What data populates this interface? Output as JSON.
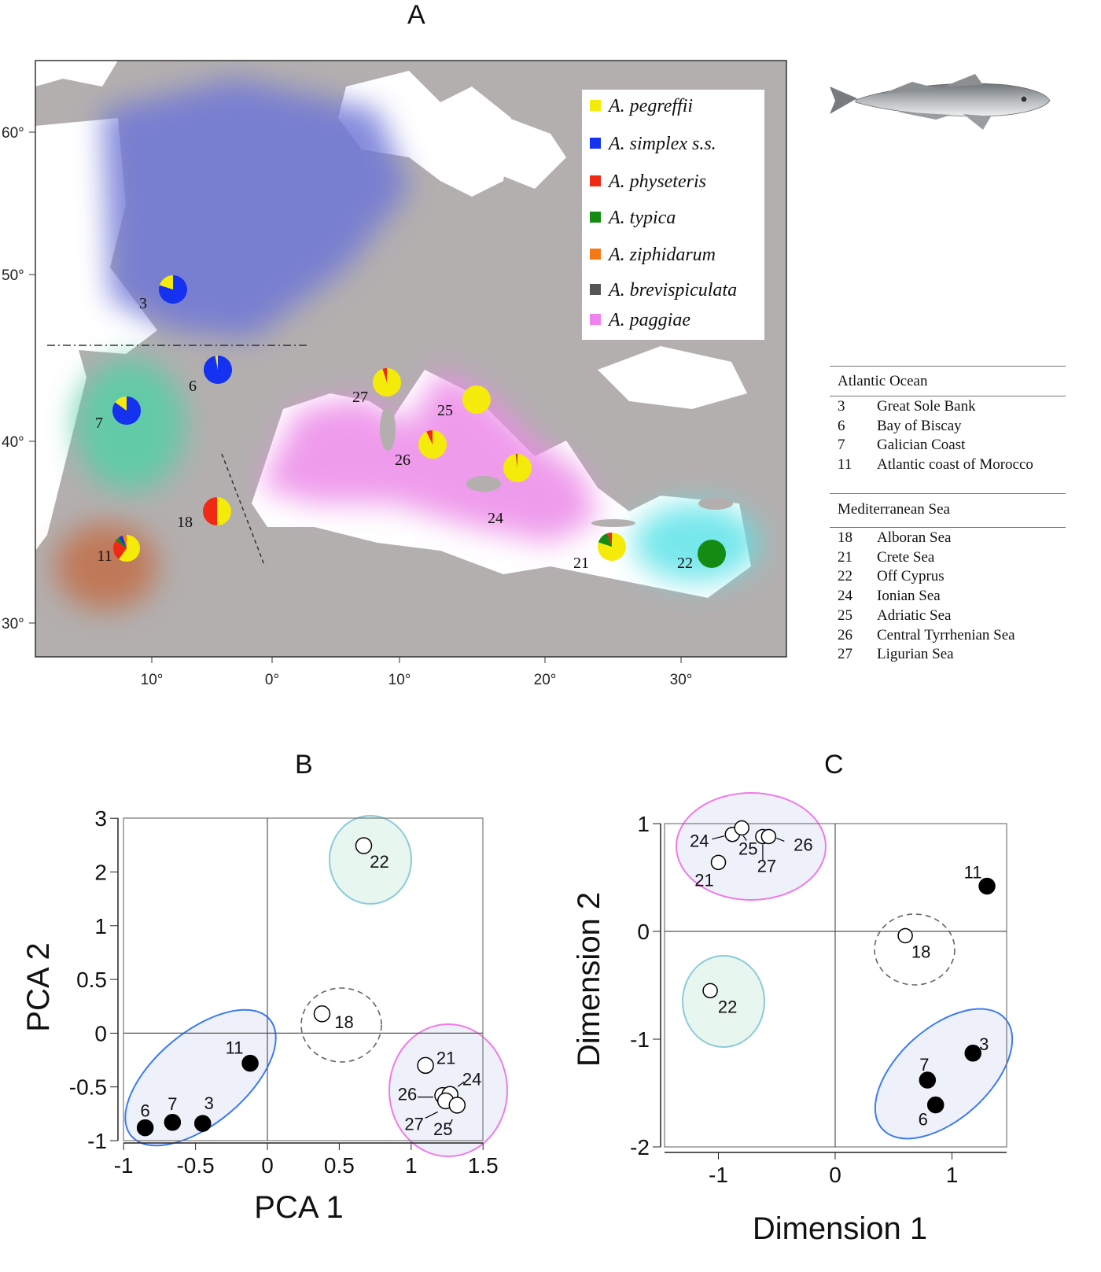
{
  "panels": {
    "a": "A",
    "b": "B",
    "c": "C"
  },
  "map": {
    "lat_labels": [
      "60°",
      "50°",
      "40°",
      "30°"
    ],
    "lon_labels": [
      "10°",
      "0°",
      "10°",
      "20°",
      "30°"
    ],
    "legend": [
      {
        "name": "A. pegreffii",
        "color": "#f5eb0a"
      },
      {
        "name": "A. simplex s.s.",
        "color": "#1432f0"
      },
      {
        "name": "A. physeteris",
        "color": "#f02814"
      },
      {
        "name": "A. typica",
        "color": "#148c14"
      },
      {
        "name": "A. ziphidarum",
        "color": "#f57814"
      },
      {
        "name": "A. brevispiculata",
        "color": "#555555"
      },
      {
        "name": "A. paggiae",
        "color": "#f082f0"
      }
    ],
    "sites": [
      {
        "id": "3",
        "composition": {
          "A. simplex s.s.": 0.8,
          "A. pegreffii": 0.2
        }
      },
      {
        "id": "6",
        "composition": {
          "A. simplex s.s.": 0.97,
          "A. pegreffii": 0.03
        }
      },
      {
        "id": "7",
        "composition": {
          "A. simplex s.s.": 0.85,
          "A. pegreffii": 0.15
        }
      },
      {
        "id": "11",
        "composition": {
          "A. pegreffii": 0.6,
          "A. physeteris": 0.25,
          "A. typica": 0.05,
          "A. simplex s.s.": 0.05,
          "A. ziphidarum": 0.05
        }
      },
      {
        "id": "18",
        "composition": {
          "A. pegreffii": 0.5,
          "A. physeteris": 0.5
        }
      },
      {
        "id": "27",
        "composition": {
          "A. pegreffii": 0.95,
          "A. physeteris": 0.05
        }
      },
      {
        "id": "25",
        "composition": {
          "A. pegreffii": 1.0
        }
      },
      {
        "id": "26",
        "composition": {
          "A. pegreffii": 0.93,
          "A. physeteris": 0.07
        }
      },
      {
        "id": "24",
        "composition": {
          "A. pegreffii": 0.98,
          "A. physeteris": 0.01,
          "A. brevispiculata": 0.01
        }
      },
      {
        "id": "21",
        "composition": {
          "A. pegreffii": 0.8,
          "A. typica": 0.15,
          "A. physeteris": 0.05
        }
      },
      {
        "id": "22",
        "composition": {
          "A. typica": 1.0
        }
      }
    ]
  },
  "site_table": {
    "groups": [
      {
        "title": "Atlantic Ocean",
        "rows": [
          [
            "3",
            "Great Sole Bank"
          ],
          [
            "6",
            "Bay of Biscay"
          ],
          [
            "7",
            "Galician Coast"
          ],
          [
            "11",
            "Atlantic coast of Morocco"
          ]
        ]
      },
      {
        "title": "Mediterranean Sea",
        "rows": [
          [
            "18",
            "Alboran Sea"
          ],
          [
            "21",
            "Crete Sea"
          ],
          [
            "22",
            "Off Cyprus"
          ],
          [
            "24",
            "Ionian Sea"
          ],
          [
            "25",
            "Adriatic Sea"
          ],
          [
            "26",
            "Central Tyrrhenian Sea"
          ],
          [
            "27",
            "Ligurian Sea"
          ]
        ]
      }
    ]
  },
  "chart_data": [
    {
      "type": "scatter",
      "title": "B",
      "xlabel": "PCA 1",
      "ylabel": "PCA 2",
      "xlim": [
        -1,
        1.5
      ],
      "ylim": [
        -1,
        3
      ],
      "xticks": [
        "-1",
        "-0.5",
        "0",
        "0.5",
        "1",
        "1.5"
      ],
      "yticks": [
        "-1",
        "-0.5",
        "0",
        "0.5",
        "1",
        "2",
        "3"
      ],
      "points": [
        {
          "label": "6",
          "x": -0.85,
          "y": -0.88,
          "filled": true
        },
        {
          "label": "7",
          "x": -0.66,
          "y": -0.83,
          "filled": true
        },
        {
          "label": "3",
          "x": -0.45,
          "y": -0.84,
          "filled": true
        },
        {
          "label": "11",
          "x": -0.12,
          "y": -0.28,
          "filled": true
        },
        {
          "label": "18",
          "x": 0.38,
          "y": 0.18,
          "filled": false
        },
        {
          "label": "22",
          "x": 0.67,
          "y": 2.49,
          "filled": false
        },
        {
          "label": "21",
          "x": 1.1,
          "y": -0.3,
          "filled": false
        },
        {
          "label": "26",
          "x": 1.22,
          "y": -0.58,
          "filled": false
        },
        {
          "label": "24",
          "x": 1.27,
          "y": -0.57,
          "filled": false
        },
        {
          "label": "27",
          "x": 1.24,
          "y": -0.63,
          "filled": false
        },
        {
          "label": "25",
          "x": 1.32,
          "y": -0.67,
          "filled": false
        }
      ],
      "groups": [
        {
          "name": "atlantic",
          "members": [
            "3",
            "6",
            "7",
            "11"
          ],
          "color": "#3b7bf0"
        },
        {
          "name": "cyprus",
          "members": [
            "22"
          ],
          "color": "#8ccbd8"
        },
        {
          "name": "alboran",
          "members": [
            "18"
          ],
          "color": "#666666"
        },
        {
          "name": "mediterranean",
          "members": [
            "21",
            "24",
            "25",
            "26",
            "27"
          ],
          "color": "#ee7ae8"
        }
      ]
    },
    {
      "type": "scatter",
      "title": "C",
      "xlabel": "Dimension 1",
      "ylabel": "Dimension 2",
      "xlim": [
        -1.4,
        1.5
      ],
      "ylim": [
        -2,
        1
      ],
      "xticks": [
        "-1",
        "0",
        "1"
      ],
      "yticks": [
        "-2",
        "-1",
        "0",
        "1"
      ],
      "points": [
        {
          "label": "24",
          "x": -0.88,
          "y": 0.9,
          "filled": false
        },
        {
          "label": "25",
          "x": -0.8,
          "y": 0.96,
          "filled": false
        },
        {
          "label": "27",
          "x": -0.62,
          "y": 0.88,
          "filled": false
        },
        {
          "label": "26",
          "x": -0.57,
          "y": 0.88,
          "filled": false
        },
        {
          "label": "21",
          "x": -1.0,
          "y": 0.64,
          "filled": false
        },
        {
          "label": "22",
          "x": -1.07,
          "y": -0.55,
          "filled": false
        },
        {
          "label": "18",
          "x": 0.6,
          "y": -0.04,
          "filled": false
        },
        {
          "label": "11",
          "x": 1.3,
          "y": 0.42,
          "filled": true
        },
        {
          "label": "3",
          "x": 1.18,
          "y": -1.13,
          "filled": true
        },
        {
          "label": "7",
          "x": 0.79,
          "y": -1.38,
          "filled": true
        },
        {
          "label": "6",
          "x": 0.86,
          "y": -1.61,
          "filled": true
        }
      ],
      "groups": [
        {
          "name": "mediterranean",
          "members": [
            "21",
            "24",
            "25",
            "26",
            "27"
          ],
          "color": "#ee7ae8"
        },
        {
          "name": "cyprus",
          "members": [
            "22"
          ],
          "color": "#8ccbd8"
        },
        {
          "name": "alboran",
          "members": [
            "18"
          ],
          "color": "#666666"
        },
        {
          "name": "atlantic",
          "members": [
            "3",
            "6",
            "7"
          ],
          "color": "#3b7bf0"
        }
      ]
    }
  ]
}
